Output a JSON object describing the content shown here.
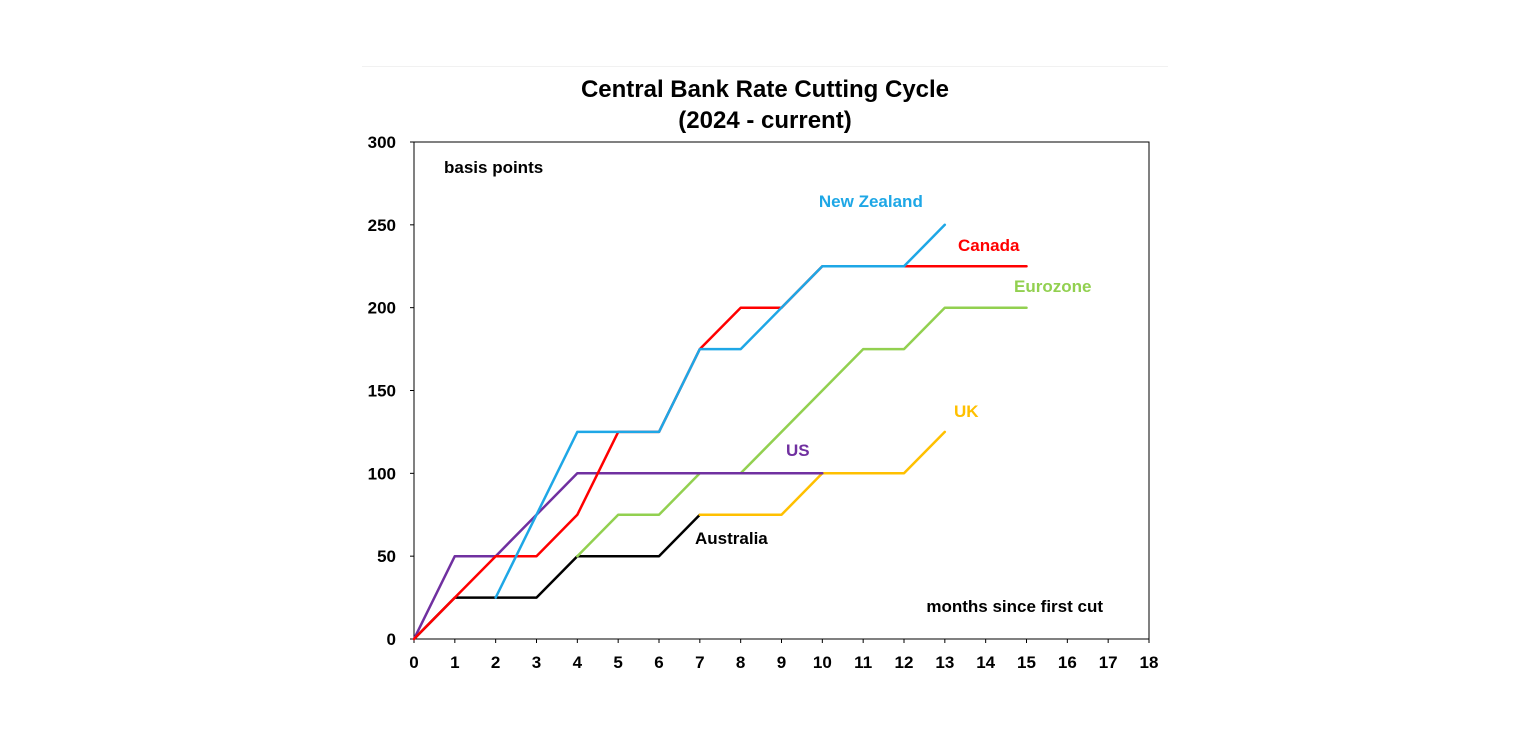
{
  "chart_data": {
    "type": "line",
    "title": "Central Bank Rate Cutting Cycle",
    "subtitle": "(2024 - current)",
    "xlabel": "months since first cut",
    "ylabel": "basis points",
    "xlim": [
      0,
      18
    ],
    "ylim": [
      0,
      300
    ],
    "x_ticks": [
      0,
      1,
      2,
      3,
      4,
      5,
      6,
      7,
      8,
      9,
      10,
      11,
      12,
      13,
      14,
      15,
      16,
      17,
      18
    ],
    "y_ticks": [
      0,
      50,
      100,
      150,
      200,
      250,
      300
    ],
    "grid": false,
    "legend": "labels placed next to series lines",
    "series": [
      {
        "name": "Australia",
        "color": "#000000",
        "x": [
          0,
          1,
          3,
          4,
          6,
          7
        ],
        "y": [
          0,
          25,
          25,
          50,
          50,
          75
        ]
      },
      {
        "name": "UK",
        "color": "#ffc000",
        "x": [
          7,
          9,
          10,
          12,
          13
        ],
        "y": [
          75,
          75,
          100,
          100,
          125
        ]
      },
      {
        "name": "Eurozone",
        "color": "#92d050",
        "x": [
          4,
          5,
          6,
          7,
          8,
          11,
          12,
          13,
          15
        ],
        "y": [
          50,
          75,
          75,
          100,
          100,
          175,
          175,
          200,
          200
        ]
      },
      {
        "name": "US",
        "color": "#7030a0",
        "x": [
          0,
          1,
          2,
          4,
          10
        ],
        "y": [
          0,
          50,
          50,
          100,
          100
        ]
      },
      {
        "name": "Canada",
        "color": "#ff0000",
        "x": [
          0,
          1,
          2,
          3,
          4,
          5,
          6,
          7,
          8,
          9,
          10,
          15
        ],
        "y": [
          0,
          25,
          50,
          50,
          75,
          125,
          125,
          175,
          200,
          200,
          225,
          225
        ]
      },
      {
        "name": "New Zealand",
        "color": "#1ea7e6",
        "x": [
          2,
          4,
          6,
          7,
          8,
          10,
          12,
          13
        ],
        "y": [
          25,
          125,
          125,
          175,
          175,
          225,
          225,
          250
        ]
      }
    ]
  }
}
